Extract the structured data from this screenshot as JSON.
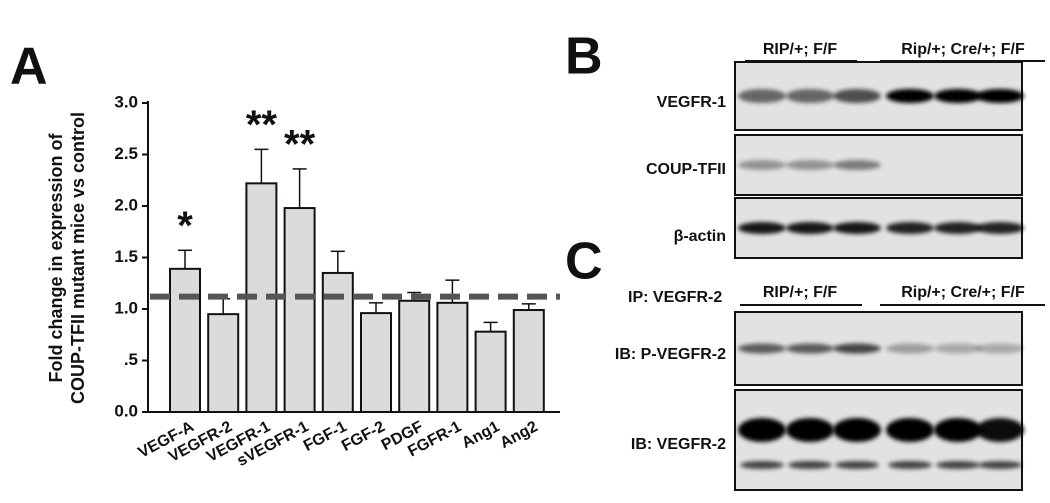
{
  "chart_data": {
    "type": "bar",
    "panel": "A",
    "ylabel": [
      "Fold change in expression of",
      "COUP-TFII mutant mice vs control"
    ],
    "categories": [
      "VEGF-A",
      "VEGFR-2",
      "VEGFR-1",
      "sVEGFR-1",
      "FGF-1",
      "FGF-2",
      "PDGF",
      "FGFR-1",
      "Ang1",
      "Ang2"
    ],
    "values": [
      1.39,
      0.95,
      2.22,
      1.98,
      1.35,
      0.96,
      1.08,
      1.06,
      0.78,
      0.99
    ],
    "errors": [
      0.18,
      0.15,
      0.33,
      0.38,
      0.21,
      0.1,
      0.08,
      0.22,
      0.09,
      0.06
    ],
    "annotations": [
      "*",
      null,
      "**",
      "**",
      null,
      null,
      null,
      null,
      null,
      null
    ],
    "color": "#d9dcd9",
    "reference_line": 1.12,
    "ylim": [
      0,
      3.0
    ],
    "yticks": [
      {
        "value": 0,
        "label": "0.0"
      },
      {
        "value": 0.5,
        "label": ".5"
      },
      {
        "value": 1,
        "label": "1.0"
      },
      {
        "value": 1.5,
        "label": "1.5"
      },
      {
        "value": 2,
        "label": "2.0"
      },
      {
        "value": 2.5,
        "label": "2.5"
      },
      {
        "value": 3,
        "label": "3.0"
      }
    ]
  },
  "blots": {
    "B": {
      "label": "B",
      "groups": [
        "RIP/+; F/F",
        "Rip/+; Cre/+; F/F"
      ],
      "rows": [
        "VEGFR-1",
        "COUP-TFII",
        "β-actin"
      ]
    },
    "C": {
      "label": "C",
      "ip": "IP: VEGFR-2",
      "groups": [
        "RIP/+; F/F",
        "Rip/+; Cre/+; F/F"
      ],
      "rows": [
        "IB: P-VEGFR-2",
        "IB: VEGFR-2"
      ]
    }
  }
}
